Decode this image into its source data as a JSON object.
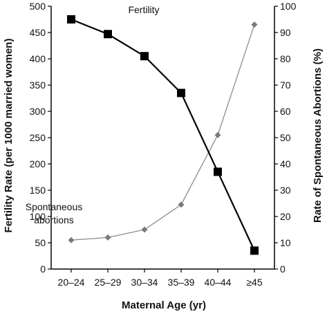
{
  "chart_data": {
    "type": "line",
    "categories": [
      "20–24",
      "25–29",
      "30–34",
      "35–39",
      "40–44",
      "≥45"
    ],
    "xlabel": "Maternal Age (yr)",
    "ylabel_left": "Fertility Rate (per 1000 married women)",
    "ylabel_right": "Rate of Spontaneous Abortions (%)",
    "ylim_left": [
      0,
      500
    ],
    "ylim_right": [
      0,
      100
    ],
    "yticks_left": [
      0,
      50,
      100,
      150,
      200,
      250,
      300,
      350,
      400,
      450,
      500
    ],
    "yticks_right": [
      0,
      10,
      20,
      30,
      40,
      50,
      60,
      70,
      80,
      90,
      100
    ],
    "grid": false,
    "series": [
      {
        "name": "Fertility",
        "axis": "left",
        "values": [
          475,
          447,
          405,
          335,
          185,
          35
        ],
        "color": "#000000",
        "marker": "square"
      },
      {
        "name": "Spontaneous abortions",
        "axis": "right",
        "values": [
          11,
          12,
          15,
          24.5,
          51,
          93
        ],
        "color": "#8c8c8c",
        "marker": "diamond"
      }
    ],
    "annotations": {
      "fertility": "Fertility",
      "abortions_line1": "Spontaneous",
      "abortions_line2": "abortions"
    }
  }
}
